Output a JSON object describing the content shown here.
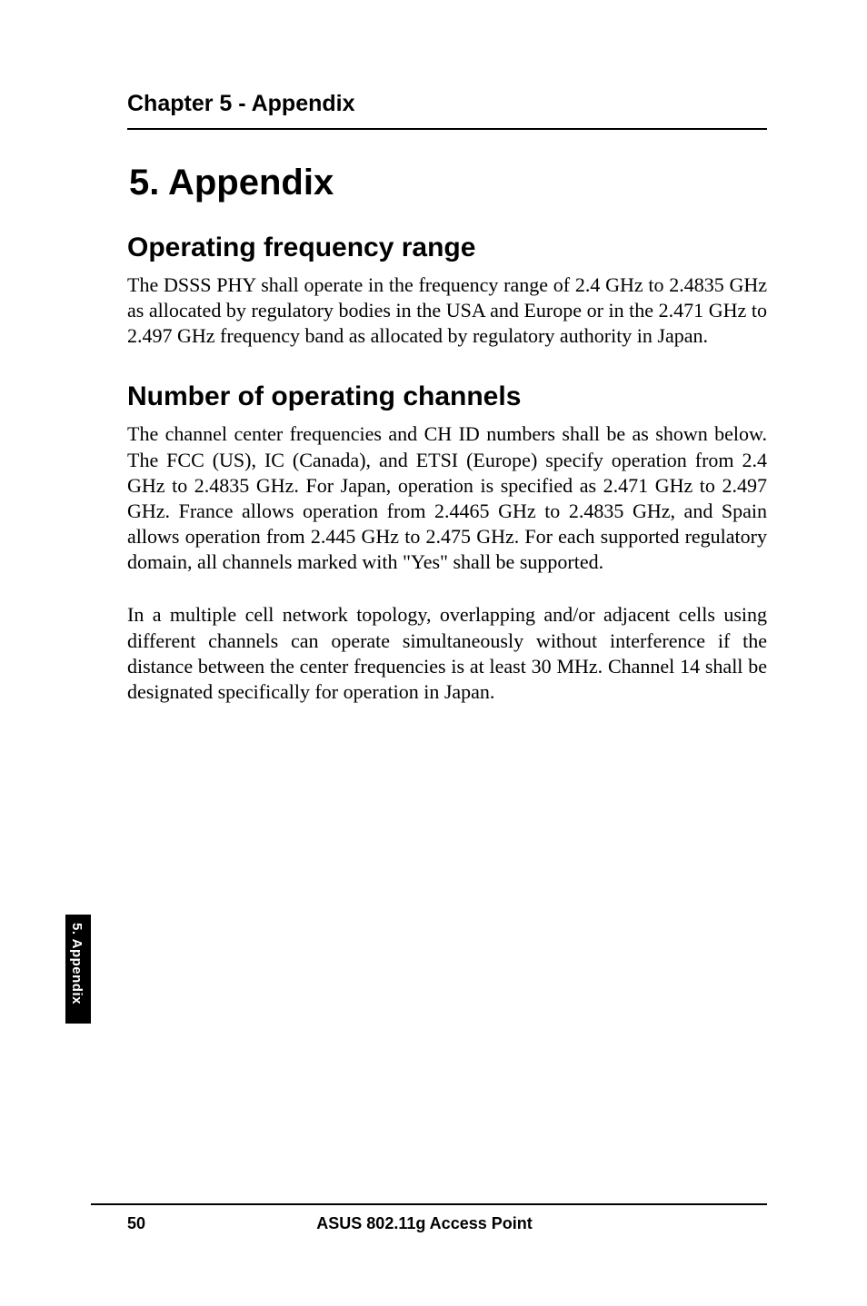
{
  "chapter_header": "Chapter 5 - Appendix",
  "main_heading": "5.  Appendix",
  "section1": {
    "heading": "Operating frequency range",
    "body": "The DSSS PHY shall operate in the frequency range of 2.4 GHz to 2.4835 GHz as allocated by regulatory bodies in the USA and Europe or in the 2.471 GHz to 2.497 GHz frequency band as allocated by regulatory authority in Japan."
  },
  "section2": {
    "heading": "Number of operating channels",
    "body1": "The channel center frequencies and CH ID numbers shall be as shown below. The FCC (US), IC (Canada), and ETSI (Europe) specify operation from 2.4 GHz to 2.4835 GHz. For Japan, operation is specified as 2.471 GHz to 2.497 GHz. France allows operation from 2.4465 GHz to 2.4835 GHz, and Spain allows operation from 2.445 GHz to 2.475 GHz. For each supported regulatory domain, all channels marked with \"Yes\" shall be supported.",
    "body2": "In a multiple cell network topology, overlapping and/or adjacent cells using different channels can operate simultaneously without interference if the distance between the center frequencies is at least 30 MHz. Channel 14 shall be designated specifically for operation in Japan."
  },
  "side_tab": "5. Appendix",
  "footer": {
    "page_number": "50",
    "title": "ASUS 802.11g Access Point"
  },
  "colors": {
    "text": "#000000",
    "background": "#ffffff",
    "tab_bg": "#000000",
    "tab_text": "#ffffff"
  },
  "typography": {
    "header_font": "Arial",
    "body_font": "Times New Roman",
    "chapter_header_size": 25,
    "main_heading_size": 40,
    "section_heading_size": 30,
    "body_size": 22,
    "footer_size": 18,
    "side_tab_size": 15
  }
}
